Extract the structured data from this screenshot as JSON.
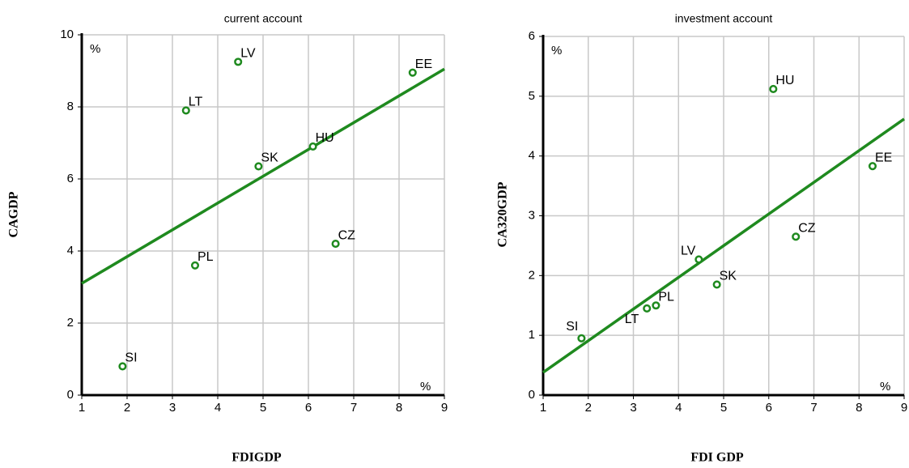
{
  "chart_data": [
    {
      "type": "scatter",
      "title": "current account",
      "y_label": "CAGDP",
      "x_label": "FDIGDP",
      "y_unit": "%",
      "x_unit": "%",
      "point_labels": [
        "SI",
        "LT",
        "PL",
        "LV",
        "SK",
        "HU",
        "CZ",
        "EE"
      ],
      "x": [
        1.9,
        3.3,
        3.5,
        4.45,
        4.9,
        6.1,
        6.6,
        8.3
      ],
      "values": [
        0.8,
        7.9,
        3.6,
        9.25,
        6.35,
        6.9,
        4.2,
        8.95
      ],
      "fit_x": [
        1,
        9
      ],
      "fit_values": [
        3.1,
        9.05
      ],
      "color": "#1f8a1f",
      "xlim": [
        1,
        9
      ],
      "xticks": [
        1,
        2,
        3,
        4,
        5,
        6,
        7,
        8,
        9
      ],
      "ylim": [
        0,
        10
      ],
      "yticks": [
        0,
        2,
        4,
        6,
        8,
        10
      ],
      "grid": true
    },
    {
      "type": "scatter",
      "title": "investment account",
      "y_label": "CA320GDP",
      "x_label": "FDI GDP",
      "y_unit": "%",
      "x_unit": "%",
      "point_labels": [
        "SI",
        "LT",
        "PL",
        "LV",
        "SK",
        "HU",
        "CZ",
        "EE"
      ],
      "x": [
        1.85,
        3.3,
        3.5,
        4.45,
        4.85,
        6.1,
        6.6,
        8.3
      ],
      "values": [
        0.95,
        1.45,
        1.5,
        2.27,
        1.85,
        5.12,
        2.65,
        3.83
      ],
      "fit_x": [
        1,
        9
      ],
      "fit_values": [
        0.38,
        4.62
      ],
      "color": "#1f8a1f",
      "xlim": [
        1,
        9
      ],
      "xticks": [
        1,
        2,
        3,
        4,
        5,
        6,
        7,
        8,
        9
      ],
      "ylim": [
        0,
        6
      ],
      "yticks": [
        0,
        1,
        2,
        3,
        4,
        5,
        6
      ],
      "grid": true
    }
  ]
}
